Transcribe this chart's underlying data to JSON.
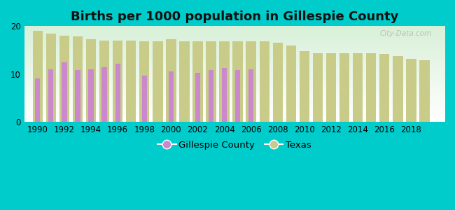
{
  "title": "Births per 1000 population in Gillespie County",
  "years": [
    1990,
    1991,
    1992,
    1993,
    1994,
    1995,
    1996,
    1997,
    1998,
    1999,
    2000,
    2001,
    2002,
    2003,
    2004,
    2005,
    2006,
    2007,
    2008,
    2009,
    2010,
    2011,
    2012,
    2013,
    2014,
    2015,
    2016,
    2017,
    2018,
    2019
  ],
  "gillespie": [
    9.0,
    11.0,
    12.5,
    10.8,
    11.0,
    11.4,
    12.2,
    null,
    9.7,
    null,
    10.5,
    null,
    10.3,
    10.8,
    11.2,
    10.8,
    11.0,
    null,
    null,
    null,
    null,
    null,
    null,
    null,
    null,
    null,
    null,
    null,
    null,
    null
  ],
  "texas": [
    19.0,
    18.5,
    18.0,
    17.8,
    17.3,
    17.0,
    17.0,
    17.0,
    16.8,
    16.8,
    17.2,
    16.8,
    16.8,
    16.8,
    16.8,
    16.8,
    16.8,
    16.8,
    16.5,
    16.0,
    14.8,
    14.4,
    14.4,
    14.4,
    14.4,
    14.4,
    14.2,
    13.7,
    13.1,
    12.9
  ],
  "gillespie_color": "#cc88cc",
  "texas_color": "#c8cc88",
  "background_top": "#ffffff",
  "background_bottom": "#d8f0d8",
  "outer_background": "#00cccc",
  "bar_width": 0.38,
  "ylim": [
    0,
    20
  ],
  "yticks": [
    0,
    10,
    20
  ],
  "xlabel_ticks": [
    1990,
    1992,
    1994,
    1996,
    1998,
    2000,
    2002,
    2004,
    2006,
    2008,
    2010,
    2012,
    2014,
    2016,
    2018
  ],
  "title_fontsize": 13,
  "tick_fontsize": 8.5,
  "legend_fontsize": 9.5,
  "watermark": "City-Data.com"
}
